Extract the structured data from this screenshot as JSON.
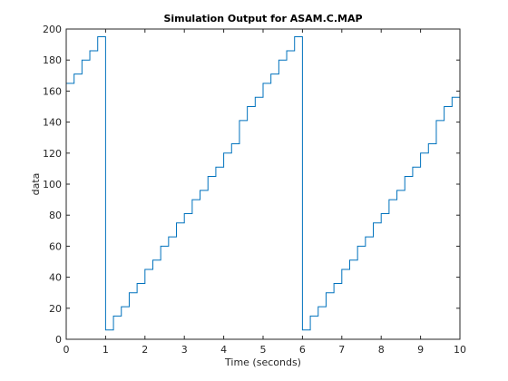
{
  "chart_data": {
    "type": "line",
    "step": true,
    "title": "Simulation Output for ASAM.C.MAP",
    "xlabel": "Time (seconds)",
    "ylabel": "data",
    "xlim": [
      0,
      10
    ],
    "ylim": [
      0,
      200
    ],
    "xticks": [
      "0",
      "1",
      "2",
      "3",
      "4",
      "5",
      "6",
      "7",
      "8",
      "9",
      "10"
    ],
    "yticks": [
      "0",
      "20",
      "40",
      "60",
      "80",
      "100",
      "120",
      "140",
      "160",
      "180",
      "200"
    ],
    "grid": false,
    "color": "#0072BD",
    "series": [
      {
        "x": [
          0,
          0.2,
          0.4,
          0.6,
          0.8,
          1.0,
          1.2,
          1.4,
          1.6,
          1.8,
          2.0,
          2.2,
          2.4,
          2.6,
          2.8,
          3.0,
          3.2,
          3.4,
          3.6,
          3.8,
          4.0,
          4.2,
          4.4,
          4.6,
          4.8,
          5.0,
          5.2,
          5.4,
          5.6,
          5.8,
          6.0,
          6.2,
          6.4,
          6.6,
          6.8,
          7.0,
          7.2,
          7.4,
          7.6,
          7.8,
          8.0,
          8.2,
          8.4,
          8.6,
          8.8,
          9.0,
          9.2,
          9.4,
          9.6,
          9.8,
          10.0
        ],
        "values": [
          165,
          171,
          180,
          186,
          195,
          6,
          15,
          21,
          30,
          36,
          45,
          51,
          60,
          66,
          75,
          81,
          90,
          96,
          105,
          111,
          120,
          126,
          141,
          150,
          156,
          165,
          171,
          180,
          186,
          195,
          6,
          15,
          21,
          30,
          36,
          45,
          51,
          60,
          66,
          75,
          81,
          90,
          96,
          105,
          111,
          120,
          126,
          141,
          150,
          156,
          160
        ]
      }
    ]
  }
}
